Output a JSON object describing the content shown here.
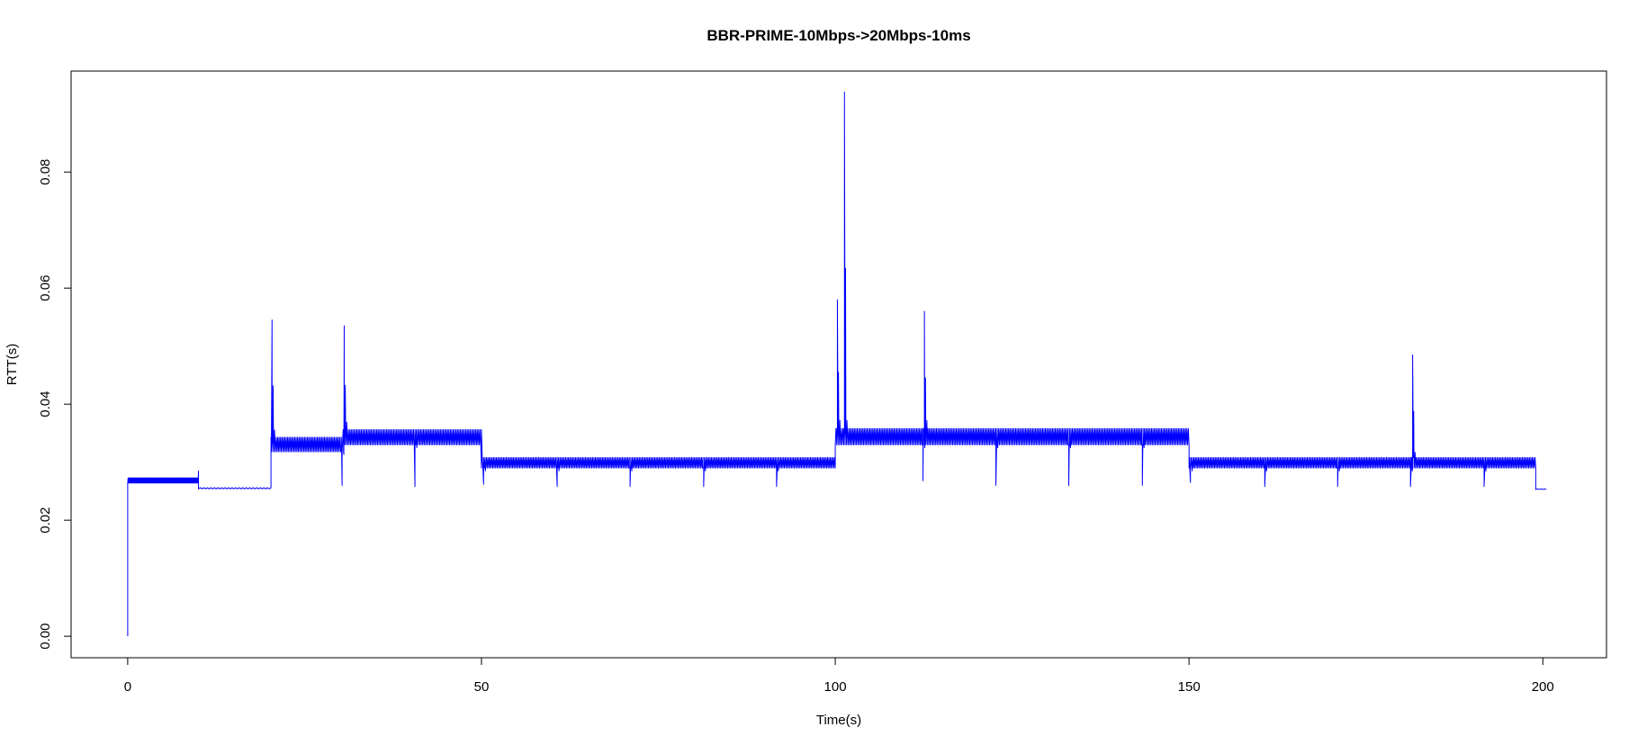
{
  "chart_data": {
    "type": "line",
    "title": "BBR-PRIME-10Mbps->20Mbps-10ms",
    "xlabel": "Time(s)",
    "ylabel": "RTT(s)",
    "xlim": [
      -8,
      209
    ],
    "ylim": [
      -0.0037,
      0.0974
    ],
    "xticks": [
      0,
      50,
      100,
      150,
      200
    ],
    "yticks": [
      0.0,
      0.02,
      0.04,
      0.06,
      0.08
    ],
    "xtick_labels": [
      "0",
      "50",
      "100",
      "150",
      "200"
    ],
    "ytick_labels": [
      "0.00",
      "0.02",
      "0.04",
      "0.06",
      "0.08"
    ],
    "grid": false,
    "legend": "none",
    "series": [
      {
        "color": "#0000ff",
        "segments": [
          {
            "start": 0.0,
            "end": 10.0,
            "base": 0.0264,
            "amp": 0.0009,
            "period": 0.12
          },
          {
            "start": 10.0,
            "end": 20.3,
            "base": 0.0254,
            "amp": 0.0002,
            "period": 0.5
          },
          {
            "start": 20.3,
            "end": 30.5,
            "base": 0.0318,
            "amp": 0.0025,
            "period": 0.2
          },
          {
            "start": 30.5,
            "end": 50.0,
            "base": 0.033,
            "amp": 0.0026,
            "period": 0.2
          },
          {
            "start": 50.0,
            "end": 100.0,
            "base": 0.029,
            "amp": 0.0018,
            "period": 0.2
          },
          {
            "start": 100.0,
            "end": 150.0,
            "base": 0.033,
            "amp": 0.0028,
            "period": 0.2
          },
          {
            "start": 150.0,
            "end": 199.0,
            "base": 0.029,
            "amp": 0.0018,
            "period": 0.2
          },
          {
            "start": 199.0,
            "end": 200.6,
            "base": 0.0253,
            "amp": 0.0001,
            "period": 0.5
          }
        ],
        "events": [
          {
            "t": 0.0,
            "y": 0.0,
            "kind": "start"
          },
          {
            "t": 10.0,
            "y": 0.0285,
            "kind": "blip"
          },
          {
            "t": 20.4,
            "y": 0.0545,
            "kind": "spike"
          },
          {
            "t": 30.6,
            "y": 0.0535,
            "kind": "spike"
          },
          {
            "t": 30.3,
            "y": 0.026,
            "kind": "dip"
          },
          {
            "t": 40.6,
            "y": 0.0258,
            "kind": "dip"
          },
          {
            "t": 50.3,
            "y": 0.0262,
            "kind": "dip"
          },
          {
            "t": 60.7,
            "y": 0.0258,
            "kind": "dip"
          },
          {
            "t": 71.0,
            "y": 0.0258,
            "kind": "dip"
          },
          {
            "t": 81.4,
            "y": 0.0258,
            "kind": "dip"
          },
          {
            "t": 91.7,
            "y": 0.0258,
            "kind": "dip"
          },
          {
            "t": 100.3,
            "y": 0.058,
            "kind": "spike"
          },
          {
            "t": 101.3,
            "y": 0.0938,
            "kind": "spike"
          },
          {
            "t": 112.4,
            "y": 0.0268,
            "kind": "dip"
          },
          {
            "t": 112.6,
            "y": 0.056,
            "kind": "spike"
          },
          {
            "t": 122.7,
            "y": 0.026,
            "kind": "dip"
          },
          {
            "t": 133.0,
            "y": 0.026,
            "kind": "dip"
          },
          {
            "t": 143.4,
            "y": 0.026,
            "kind": "dip"
          },
          {
            "t": 150.2,
            "y": 0.0265,
            "kind": "dip"
          },
          {
            "t": 160.7,
            "y": 0.0258,
            "kind": "dip"
          },
          {
            "t": 171.0,
            "y": 0.0258,
            "kind": "dip"
          },
          {
            "t": 181.3,
            "y": 0.0258,
            "kind": "dip"
          },
          {
            "t": 181.6,
            "y": 0.0485,
            "kind": "spike"
          },
          {
            "t": 191.7,
            "y": 0.0258,
            "kind": "dip"
          }
        ]
      }
    ]
  }
}
